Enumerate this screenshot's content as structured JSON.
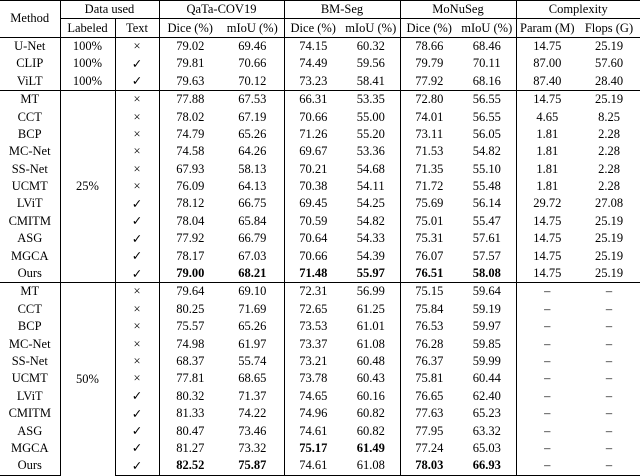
{
  "table": {
    "header": {
      "method": "Method",
      "data_used": "Data used",
      "labeled": "Labeled",
      "text": "Text",
      "groups": [
        "QaTa-COV19",
        "BM-Seg",
        "MoNuSeg",
        "Complexity"
      ],
      "subcols": [
        "Dice (%)",
        "mIoU (%)",
        "Dice (%)",
        "mIoU (%)",
        "Dice (%)",
        "mIoU (%)",
        "Param (M)",
        "Flops (G)"
      ]
    },
    "sections": [
      {
        "rows": [
          [
            "U-Net",
            "100%",
            "×",
            "79.02",
            "69.46",
            "74.15",
            "60.32",
            "78.66",
            "68.46",
            "14.75",
            "25.19"
          ],
          [
            "CLIP",
            "100%",
            "✓",
            "79.81",
            "70.66",
            "74.49",
            "59.56",
            "79.79",
            "70.11",
            "87.00",
            "57.60"
          ],
          [
            "ViLT",
            "100%",
            "✓",
            "79.63",
            "70.12",
            "73.23",
            "58.41",
            "77.92",
            "68.16",
            "87.40",
            "28.40"
          ]
        ]
      },
      {
        "labeled": "25%",
        "rows": [
          [
            "MT",
            "×",
            "77.88",
            "67.53",
            "66.31",
            "53.35",
            "72.80",
            "56.55",
            "14.75",
            "25.19"
          ],
          [
            "CCT",
            "×",
            "78.02",
            "67.19",
            "70.66",
            "55.00",
            "74.01",
            "56.55",
            "4.65",
            "8.25"
          ],
          [
            "BCP",
            "×",
            "74.79",
            "65.26",
            "71.26",
            "55.20",
            "73.11",
            "56.05",
            "1.81",
            "2.28"
          ],
          [
            "MC-Net",
            "×",
            "74.58",
            "64.26",
            "69.67",
            "53.36",
            "71.53",
            "54.82",
            "1.81",
            "2.28"
          ],
          [
            "SS-Net",
            "×",
            "67.93",
            "58.13",
            "70.21",
            "54.68",
            "71.35",
            "55.10",
            "1.81",
            "2.28"
          ],
          [
            "UCMT",
            "×",
            "76.09",
            "64.13",
            "70.38",
            "54.11",
            "71.72",
            "55.48",
            "1.81",
            "2.28"
          ],
          [
            "LViT",
            "✓",
            "78.12",
            "66.75",
            "69.45",
            "54.25",
            "75.69",
            "56.14",
            "29.72",
            "27.08"
          ],
          [
            "CMITM",
            "✓",
            "78.04",
            "65.84",
            "70.59",
            "54.82",
            "75.01",
            "55.47",
            "14.75",
            "25.19"
          ],
          [
            "ASG",
            "✓",
            "77.92",
            "66.79",
            "70.64",
            "54.33",
            "75.31",
            "57.61",
            "14.75",
            "25.19"
          ],
          [
            "MGCA",
            "✓",
            "78.17",
            "67.03",
            "70.66",
            "54.39",
            "76.07",
            "57.57",
            "14.75",
            "25.19"
          ],
          [
            "Ours",
            "✓",
            "79.00",
            "68.21",
            "71.48",
            "55.97",
            "76.51",
            "58.08",
            "14.75",
            "25.19"
          ]
        ]
      },
      {
        "labeled": "50%",
        "rows": [
          [
            "MT",
            "×",
            "79.64",
            "69.10",
            "72.31",
            "56.99",
            "75.15",
            "59.64",
            "–",
            "–"
          ],
          [
            "CCT",
            "×",
            "80.25",
            "71.69",
            "72.65",
            "61.25",
            "75.84",
            "59.19",
            "–",
            "–"
          ],
          [
            "BCP",
            "×",
            "75.57",
            "65.26",
            "73.53",
            "61.01",
            "76.53",
            "59.97",
            "–",
            "–"
          ],
          [
            "MC-Net",
            "×",
            "74.98",
            "61.97",
            "73.37",
            "61.08",
            "76.28",
            "59.85",
            "–",
            "–"
          ],
          [
            "SS-Net",
            "×",
            "68.37",
            "55.74",
            "73.21",
            "60.48",
            "76.37",
            "59.99",
            "–",
            "–"
          ],
          [
            "UCMT",
            "×",
            "77.81",
            "68.65",
            "73.78",
            "60.43",
            "75.81",
            "60.44",
            "–",
            "–"
          ],
          [
            "LViT",
            "✓",
            "80.32",
            "71.37",
            "74.65",
            "60.16",
            "76.65",
            "62.40",
            "–",
            "–"
          ],
          [
            "CMITM",
            "✓",
            "81.33",
            "74.22",
            "74.96",
            "60.82",
            "77.63",
            "65.23",
            "–",
            "–"
          ],
          [
            "ASG",
            "✓",
            "80.47",
            "73.46",
            "74.61",
            "60.82",
            "77.95",
            "63.32",
            "–",
            "–"
          ],
          [
            "MGCA",
            "✓",
            "81.27",
            "73.32",
            "75.17",
            "61.49",
            "77.24",
            "65.03",
            "–",
            "–"
          ],
          [
            "Ours",
            "✓",
            "82.52",
            "75.87",
            "74.61",
            "61.08",
            "78.03",
            "66.93",
            "–",
            "–"
          ]
        ]
      }
    ]
  }
}
